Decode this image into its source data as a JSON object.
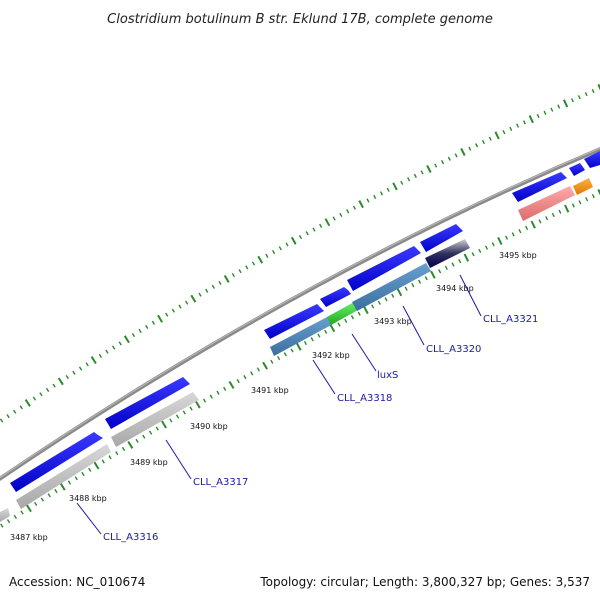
{
  "title": "Clostridium botulinum B str. Eklund 17B, complete genome",
  "accession": "Accession: NC_010674",
  "summary": "Topology: circular; Length: 3,800,327 bp; Genes: 3,537",
  "colors": {
    "backbone": "#8a8a8a",
    "tick": "#2a8a2a",
    "cds_forward": "#1a1ae6",
    "cds_reverse": "#c4c4c4",
    "highlight_green": "#33cc33",
    "steelblue": "#4a86b8",
    "salmon": "#ee8080",
    "orange": "#f5900a",
    "navy": "#101060",
    "label": "#1a1aa6"
  },
  "kbp_labels": [
    "3487 kbp",
    "3488 kbp",
    "3489 kbp",
    "3490 kbp",
    "3491 kbp",
    "3492 kbp",
    "3493 kbp",
    "3494 kbp",
    "3495 kbp"
  ],
  "gene_labels": [
    "CLL_A3316",
    "CLL_A3317",
    "CLL_A3318",
    "luxS",
    "CLL_A3320",
    "CLL_A3321"
  ]
}
